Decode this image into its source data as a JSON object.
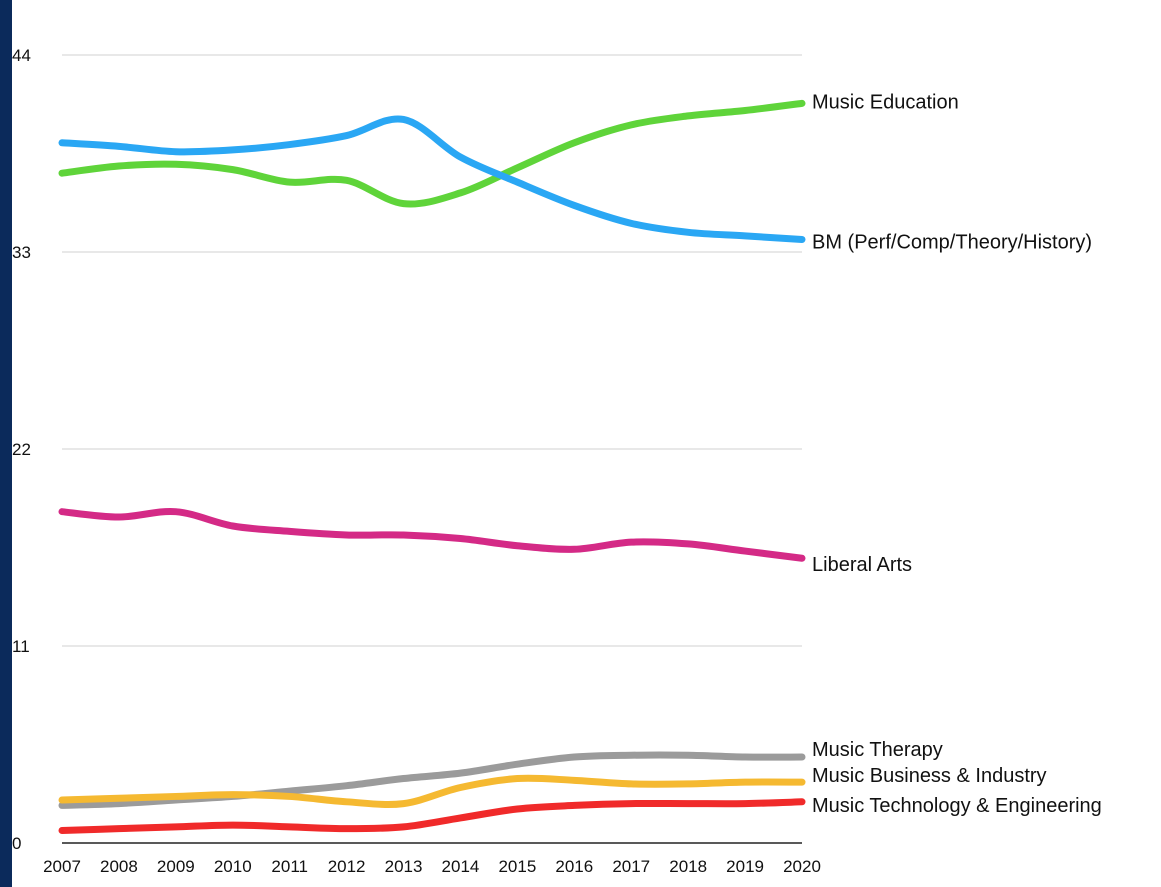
{
  "chart_data": {
    "type": "line",
    "title": "",
    "xlabel": "",
    "ylabel": "",
    "x": [
      "2007",
      "2008",
      "2009",
      "2010",
      "2011",
      "2012",
      "2013",
      "2014",
      "2015",
      "2016",
      "2017",
      "2018",
      "2019",
      "2020"
    ],
    "ylim": [
      0,
      44
    ],
    "yticks": [
      0,
      11,
      22,
      33,
      44
    ],
    "grid": true,
    "legend": "inline labels at right end of each line",
    "series": [
      {
        "name": "Music Education",
        "color": "#5fd43a",
        "values": [
          37.4,
          37.8,
          37.9,
          37.6,
          36.9,
          37.0,
          35.7,
          36.3,
          37.7,
          39.1,
          40.1,
          40.6,
          40.9,
          41.3
        ]
      },
      {
        "name": "BM (Perf/Comp/Theory/History)",
        "color": "#2aa7f4",
        "values": [
          39.1,
          38.9,
          38.6,
          38.7,
          39.0,
          39.5,
          40.4,
          38.3,
          36.9,
          35.6,
          34.6,
          34.1,
          33.9,
          33.7
        ]
      },
      {
        "name": "Liberal Arts",
        "color": "#d42a86",
        "values": [
          18.5,
          18.2,
          18.5,
          17.7,
          17.4,
          17.2,
          17.2,
          17.0,
          16.6,
          16.4,
          16.8,
          16.7,
          16.3,
          15.9
        ]
      },
      {
        "name": "Music Therapy",
        "color": "#9b9b9b",
        "values": [
          2.1,
          2.2,
          2.4,
          2.6,
          2.9,
          3.2,
          3.6,
          3.9,
          4.4,
          4.8,
          4.9,
          4.9,
          4.8,
          4.8
        ]
      },
      {
        "name": "Music Business & Industry",
        "color": "#f5b931",
        "values": [
          2.4,
          2.5,
          2.6,
          2.7,
          2.6,
          2.3,
          2.2,
          3.1,
          3.6,
          3.5,
          3.3,
          3.3,
          3.4,
          3.4
        ]
      },
      {
        "name": "Music Technology & Engineering",
        "color": "#f02a2a",
        "values": [
          0.7,
          0.8,
          0.9,
          1.0,
          0.9,
          0.8,
          0.9,
          1.4,
          1.9,
          2.1,
          2.2,
          2.2,
          2.2,
          2.3
        ]
      }
    ]
  }
}
